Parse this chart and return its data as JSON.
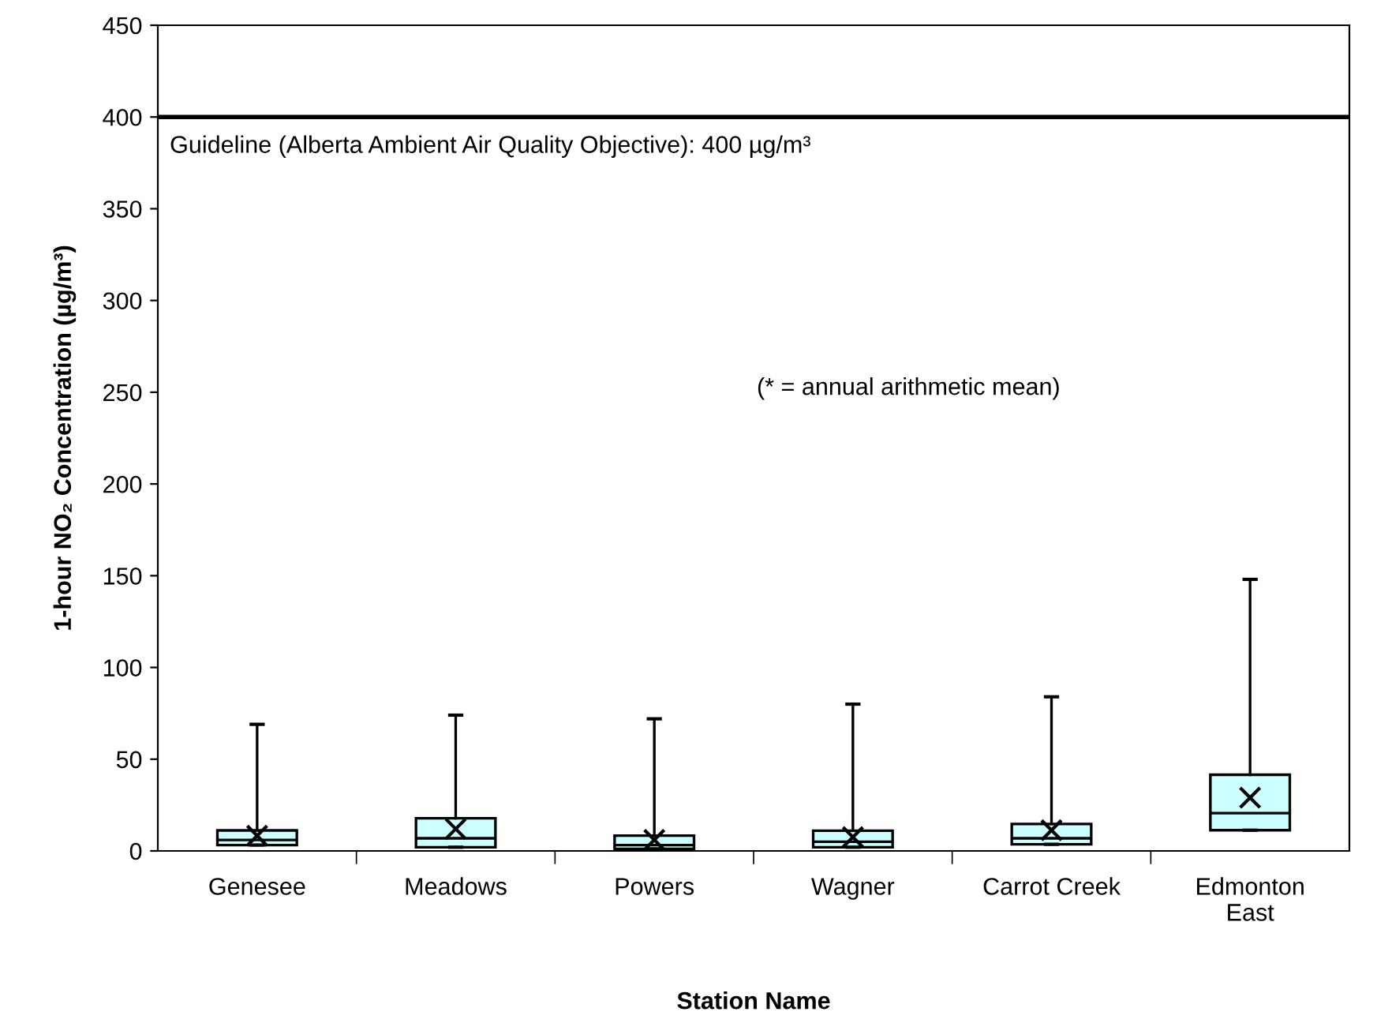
{
  "chart_data": {
    "type": "box",
    "xlabel": "Station Name",
    "ylabel": "1-hour NO₂ Concentration (µg/m³)",
    "categories": [
      "Genesee",
      "Meadows",
      "Powers",
      "Wagner",
      "Carrot Creek",
      "Edmonton\nEast"
    ],
    "series": [
      {
        "color": "#ccffff",
        "boxes": [
          {
            "low": 3.2,
            "q1": 3.2,
            "median": 6,
            "q3": 11.2,
            "high": 69,
            "mean": 8.3
          },
          {
            "low": 2,
            "q1": 2,
            "median": 6.9,
            "q3": 17.8,
            "high": 74,
            "mean": 12
          },
          {
            "low": 1.1,
            "q1": 1.1,
            "median": 3.2,
            "q3": 8.3,
            "high": 72,
            "mean": 6
          },
          {
            "low": 2,
            "q1": 2,
            "median": 5,
            "q3": 11,
            "high": 80,
            "mean": 7.5
          },
          {
            "low": 3.6,
            "q1": 3.6,
            "median": 6.9,
            "q3": 14.7,
            "high": 84,
            "mean": 11.3
          },
          {
            "low": 11.3,
            "q1": 11.3,
            "median": 20.6,
            "q3": 41.5,
            "high": 148,
            "mean": 29
          }
        ]
      }
    ],
    "ylim": [
      0,
      450
    ],
    "yticks": [
      0,
      50,
      100,
      150,
      200,
      250,
      300,
      350,
      400,
      450
    ],
    "ref_lines": [
      {
        "axis": "y",
        "value": 400,
        "label": "Guideline (Alberta Ambient Air Quality Objective): 400 µg/m³",
        "color": "#000000"
      }
    ],
    "annotations": [
      "(* = annual arithmetic mean)"
    ],
    "marker": "cross",
    "grid": false,
    "legend": false
  }
}
